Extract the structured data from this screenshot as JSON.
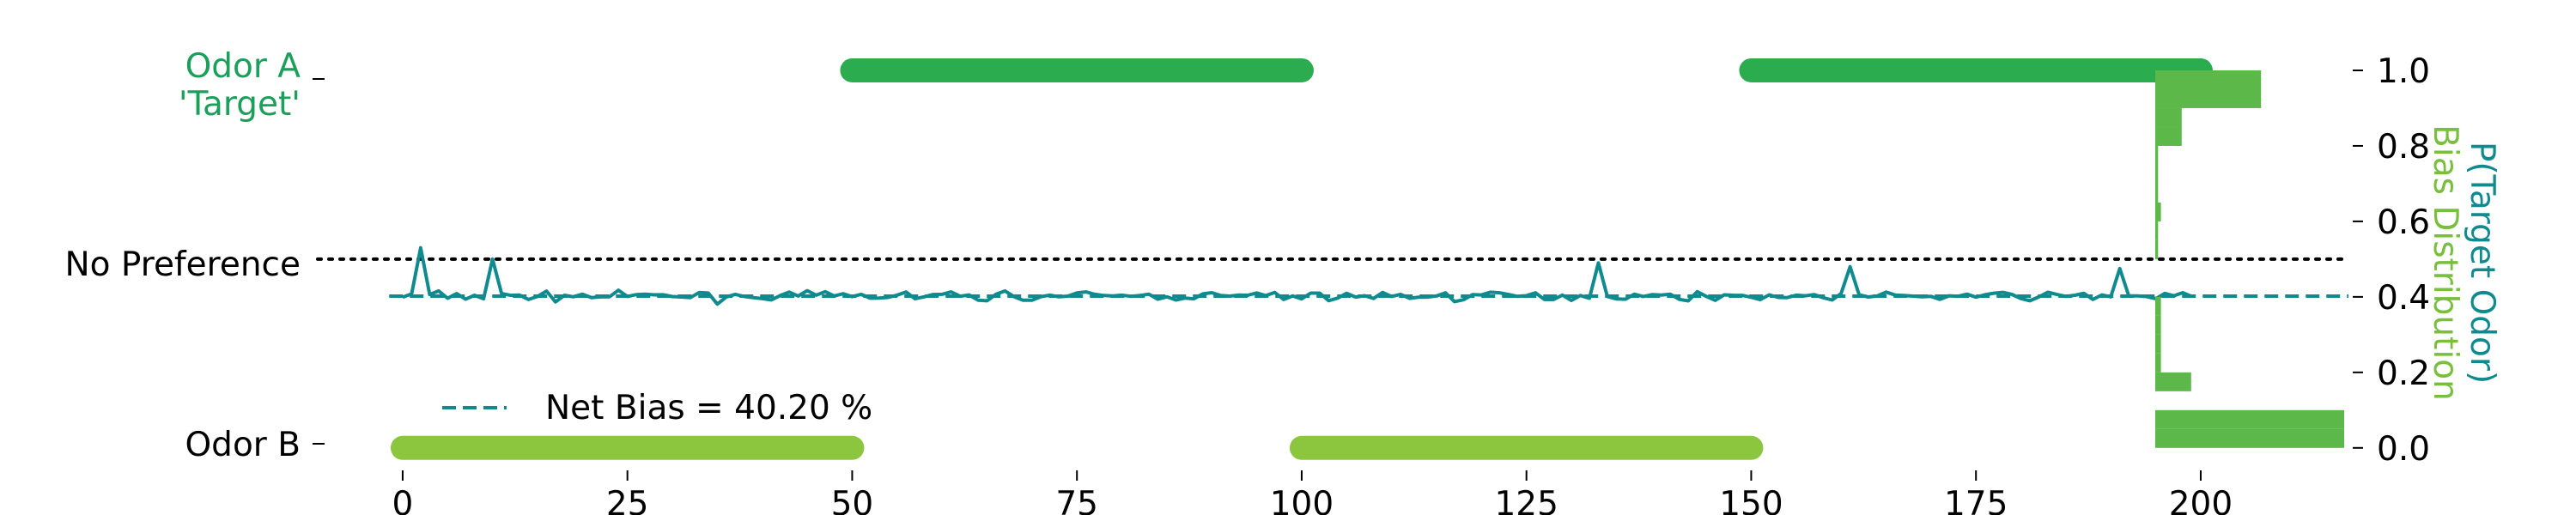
{
  "chart_data": {
    "type": "line",
    "x_ticks": [
      "0",
      "25",
      "50",
      "75",
      "100",
      "125",
      "150",
      "175",
      "200"
    ],
    "xlim": [
      -2,
      215
    ],
    "ylim": [
      -0.03,
      1.05
    ],
    "y_category_labels": {
      "odor_a_line1": "Odor A",
      "odor_a_line2": "'Target'",
      "no_preference": "No Preference",
      "odor_b": "Odor B"
    },
    "right_axis": {
      "ticks": [
        "0.0",
        "0.2",
        "0.4",
        "0.6",
        "0.8",
        "1.0"
      ],
      "tick_values": [
        0.0,
        0.2,
        0.4,
        0.6,
        0.8,
        1.0
      ],
      "label_p_target": "P(Target Odor)",
      "label_bias_dist": "Bias Distribution"
    },
    "odor_blocks": [
      {
        "odor": "B",
        "start": 0,
        "end": 50
      },
      {
        "odor": "A",
        "start": 50,
        "end": 100
      },
      {
        "odor": "B",
        "start": 100,
        "end": 150
      },
      {
        "odor": "A",
        "start": 150,
        "end": 200
      }
    ],
    "net_bias": {
      "value": 0.402,
      "legend": "Net Bias = 40.20 %"
    },
    "no_preference_level": 0.5,
    "series_seed": 7,
    "histogram": {
      "bin_width": 0.05,
      "bins": [
        {
          "y": 0.0,
          "rel": 1.0
        },
        {
          "y": 0.05,
          "rel": 1.0
        },
        {
          "y": 0.15,
          "rel": 0.19
        },
        {
          "y": 0.2,
          "rel": 0.03
        },
        {
          "y": 0.25,
          "rel": 0.03
        },
        {
          "y": 0.3,
          "rel": 0.03
        },
        {
          "y": 0.35,
          "rel": 0.03
        },
        {
          "y": 0.5,
          "rel": 0.015
        },
        {
          "y": 0.55,
          "rel": 0.015
        },
        {
          "y": 0.6,
          "rel": 0.03
        },
        {
          "y": 0.65,
          "rel": 0.015
        },
        {
          "y": 0.7,
          "rel": 0.015
        },
        {
          "y": 0.75,
          "rel": 0.015
        },
        {
          "y": 0.8,
          "rel": 0.14
        },
        {
          "y": 0.85,
          "rel": 0.14
        },
        {
          "y": 0.9,
          "rel": 0.56
        },
        {
          "y": 0.95,
          "rel": 0.56
        }
      ]
    },
    "colors": {
      "odor_a": "#2aac4f",
      "odor_a_label": "#1aa05a",
      "odor_b": "#8cc63e",
      "line": "#0f8a8e",
      "histogram": "#5cb848",
      "bias_dist_label": "#78bf3e",
      "no_pref": "#000000"
    }
  }
}
